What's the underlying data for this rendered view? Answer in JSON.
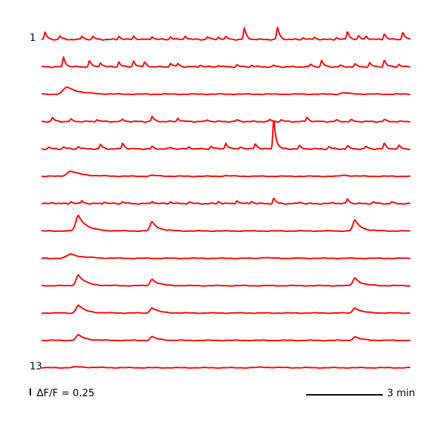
{
  "chart_data": {
    "type": "line",
    "title": "",
    "xlabel": "",
    "ylabel": "",
    "trace_color": "#ff0000",
    "grid": false,
    "first_label": "1",
    "last_label": "13",
    "scale_bar_y": {
      "value": 0.25,
      "label": "ΔF/F = 0.25"
    },
    "scale_bar_x": {
      "value": 3,
      "label": "3 min"
    },
    "series": [
      {
        "index": 1,
        "type": "spiky",
        "peaks": [
          [
            0.01,
            0.25
          ],
          [
            0.05,
            0.12
          ],
          [
            0.11,
            0.12
          ],
          [
            0.14,
            0.1
          ],
          [
            0.21,
            0.12
          ],
          [
            0.25,
            0.12
          ],
          [
            0.3,
            0.11
          ],
          [
            0.35,
            0.1
          ],
          [
            0.39,
            0.13
          ],
          [
            0.45,
            0.1
          ],
          [
            0.48,
            0.09
          ],
          [
            0.5,
            0.09
          ],
          [
            0.55,
            0.4
          ],
          [
            0.64,
            0.45
          ],
          [
            0.71,
            0.07
          ],
          [
            0.74,
            0.08
          ],
          [
            0.8,
            0.07
          ],
          [
            0.83,
            0.3
          ],
          [
            0.86,
            0.12
          ],
          [
            0.88,
            0.12
          ],
          [
            0.93,
            0.22
          ],
          [
            0.98,
            0.28
          ]
        ]
      },
      {
        "index": 2,
        "type": "spiky",
        "peaks": [
          [
            0.06,
            0.35
          ],
          [
            0.13,
            0.22
          ],
          [
            0.16,
            0.16
          ],
          [
            0.21,
            0.18
          ],
          [
            0.25,
            0.22
          ],
          [
            0.28,
            0.17
          ],
          [
            0.35,
            0.13
          ],
          [
            0.37,
            0.12
          ],
          [
            0.43,
            0.07
          ],
          [
            0.48,
            0.06
          ],
          [
            0.53,
            0.07
          ],
          [
            0.57,
            0.06
          ],
          [
            0.63,
            0.05
          ],
          [
            0.73,
            0.1
          ],
          [
            0.76,
            0.22
          ],
          [
            0.81,
            0.05
          ],
          [
            0.85,
            0.1
          ],
          [
            0.89,
            0.15
          ],
          [
            0.93,
            0.25
          ],
          [
            0.97,
            0.1
          ]
        ]
      },
      {
        "index": 3,
        "type": "slow",
        "bumps": [
          [
            0.07,
            0.25,
            0.015
          ],
          [
            0.82,
            0.05,
            0.01
          ]
        ]
      },
      {
        "index": 4,
        "type": "spiky",
        "peaks": [
          [
            0.03,
            0.14
          ],
          [
            0.08,
            0.08
          ],
          [
            0.15,
            0.08
          ],
          [
            0.22,
            0.08
          ],
          [
            0.3,
            0.18
          ],
          [
            0.37,
            0.13
          ],
          [
            0.45,
            0.06
          ],
          [
            0.53,
            0.06
          ],
          [
            0.62,
            0.07
          ],
          [
            0.65,
            0.06
          ],
          [
            0.72,
            0.16
          ],
          [
            0.8,
            0.05
          ],
          [
            0.84,
            0.06
          ],
          [
            0.93,
            0.07
          ]
        ]
      },
      {
        "index": 5,
        "type": "spiky",
        "peaks": [
          [
            0.02,
            0.05
          ],
          [
            0.06,
            0.07
          ],
          [
            0.1,
            0.09
          ],
          [
            0.16,
            0.16
          ],
          [
            0.22,
            0.22
          ],
          [
            0.3,
            0.08
          ],
          [
            0.35,
            0.06
          ],
          [
            0.4,
            0.07
          ],
          [
            0.46,
            0.1
          ],
          [
            0.5,
            0.22
          ],
          [
            0.54,
            0.09
          ],
          [
            0.58,
            0.2
          ],
          [
            0.63,
            1.1
          ],
          [
            0.7,
            0.1
          ],
          [
            0.78,
            0.08
          ],
          [
            0.83,
            0.11
          ],
          [
            0.88,
            0.09
          ],
          [
            0.93,
            0.2
          ],
          [
            0.97,
            0.12
          ]
        ]
      },
      {
        "index": 6,
        "type": "slow",
        "bumps": [
          [
            0.08,
            0.18,
            0.015
          ],
          [
            0.3,
            0.03,
            0.01
          ],
          [
            0.5,
            0.02,
            0.01
          ],
          [
            0.82,
            0.04,
            0.01
          ]
        ]
      },
      {
        "index": 7,
        "type": "spiky",
        "peaks": [
          [
            0.03,
            0.05
          ],
          [
            0.08,
            0.08
          ],
          [
            0.11,
            0.1
          ],
          [
            0.17,
            0.07
          ],
          [
            0.22,
            0.08
          ],
          [
            0.3,
            0.09
          ],
          [
            0.35,
            0.07
          ],
          [
            0.4,
            0.07
          ],
          [
            0.48,
            0.08
          ],
          [
            0.53,
            0.12
          ],
          [
            0.57,
            0.09
          ],
          [
            0.63,
            0.2
          ],
          [
            0.7,
            0.06
          ],
          [
            0.79,
            0.05
          ],
          [
            0.83,
            0.18
          ],
          [
            0.9,
            0.06
          ],
          [
            0.95,
            0.06
          ]
        ]
      },
      {
        "index": 8,
        "type": "slow",
        "bumps": [
          [
            0.1,
            0.55,
            0.01
          ],
          [
            0.3,
            0.32,
            0.008
          ],
          [
            0.85,
            0.38,
            0.008
          ]
        ]
      },
      {
        "index": 9,
        "type": "slow",
        "bumps": [
          [
            0.08,
            0.15,
            0.015
          ],
          [
            0.6,
            0.03,
            0.01
          ]
        ]
      },
      {
        "index": 10,
        "type": "slow",
        "bumps": [
          [
            0.1,
            0.38,
            0.009
          ],
          [
            0.3,
            0.23,
            0.008
          ],
          [
            0.85,
            0.28,
            0.008
          ]
        ]
      },
      {
        "index": 11,
        "type": "slow",
        "bumps": [
          [
            0.1,
            0.28,
            0.009
          ],
          [
            0.3,
            0.19,
            0.008
          ],
          [
            0.85,
            0.19,
            0.008
          ]
        ]
      },
      {
        "index": 12,
        "type": "slow",
        "bumps": [
          [
            0.1,
            0.19,
            0.009
          ],
          [
            0.3,
            0.13,
            0.008
          ],
          [
            0.85,
            0.13,
            0.008
          ]
        ]
      },
      {
        "index": 13,
        "type": "flat",
        "bumps": [
          [
            0.1,
            0.03,
            0.02
          ],
          [
            0.6,
            0.02,
            0.02
          ]
        ]
      }
    ]
  }
}
